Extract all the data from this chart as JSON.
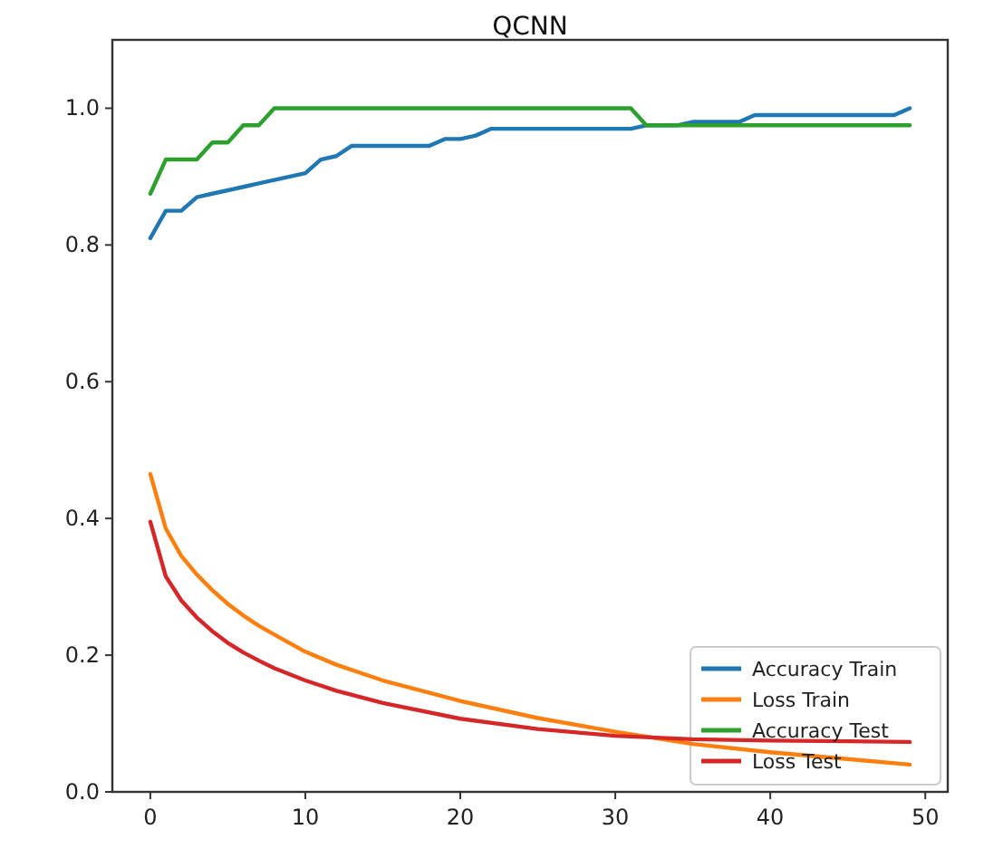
{
  "chart_data": {
    "type": "line",
    "title": "QCNN",
    "xlim": [
      -2.45,
      51.45
    ],
    "xticks": [
      0,
      10,
      20,
      30,
      40,
      50
    ],
    "ylim": [
      0,
      1.1
    ],
    "yticks": [
      {
        "value": 0,
        "label": "0.0"
      },
      {
        "value": 0.2,
        "label": "0.2"
      },
      {
        "value": 0.4,
        "label": "0.4"
      },
      {
        "value": 0.6,
        "label": "0.6"
      },
      {
        "value": 0.8,
        "label": "0.8"
      },
      {
        "value": 1,
        "label": "1.0"
      }
    ],
    "grid": false,
    "legend": "bottom right",
    "marker": "none",
    "line_style": "solid",
    "series": [
      {
        "name": "Accuracy Train",
        "color": "#1f77b4",
        "x": [
          0,
          1,
          2,
          3,
          4,
          5,
          6,
          7,
          8,
          9,
          10,
          11,
          12,
          13,
          18,
          19,
          20,
          21,
          22,
          31,
          32,
          34,
          35,
          38,
          39,
          48,
          49
        ],
        "values": [
          0.81,
          0.85,
          0.85,
          0.87,
          0.875,
          0.88,
          0.885,
          0.89,
          0.895,
          0.9,
          0.905,
          0.925,
          0.93,
          0.945,
          0.945,
          0.955,
          0.955,
          0.96,
          0.97,
          0.97,
          0.975,
          0.975,
          0.98,
          0.98,
          0.99,
          0.99,
          1.0
        ]
      },
      {
        "name": "Loss Train",
        "color": "#ff7f0e",
        "x": [
          0,
          1,
          2,
          3,
          4,
          5,
          6,
          7,
          8,
          10,
          12,
          15,
          20,
          25,
          30,
          35,
          40,
          45,
          49
        ],
        "values": [
          0.465,
          0.385,
          0.345,
          0.318,
          0.295,
          0.275,
          0.258,
          0.243,
          0.23,
          0.205,
          0.186,
          0.163,
          0.133,
          0.108,
          0.088,
          0.07,
          0.058,
          0.048,
          0.04
        ]
      },
      {
        "name": "Accuracy Test",
        "color": "#2ca02c",
        "x": [
          0,
          1,
          2,
          3,
          4,
          5,
          6,
          7,
          8,
          31,
          32,
          49
        ],
        "values": [
          0.875,
          0.925,
          0.925,
          0.925,
          0.95,
          0.95,
          0.975,
          0.975,
          1.0,
          1.0,
          0.975,
          0.975
        ]
      },
      {
        "name": "Loss Test",
        "color": "#d62728",
        "x": [
          0,
          1,
          2,
          3,
          4,
          5,
          6,
          7,
          8,
          10,
          12,
          15,
          20,
          25,
          30,
          35,
          40,
          45,
          49
        ],
        "values": [
          0.395,
          0.315,
          0.28,
          0.255,
          0.235,
          0.218,
          0.204,
          0.192,
          0.181,
          0.163,
          0.148,
          0.13,
          0.107,
          0.092,
          0.082,
          0.077,
          0.075,
          0.074,
          0.073
        ]
      }
    ]
  }
}
